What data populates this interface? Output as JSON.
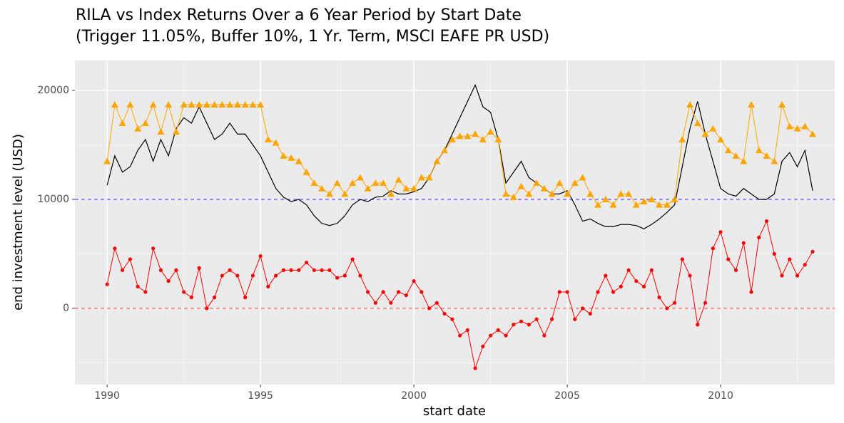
{
  "chart_data": {
    "type": "line",
    "title": "RILA vs Index Returns Over a 6 Year Period by Start Date",
    "subtitle": "(Trigger 11.05%, Buffer 10%, 1 Yr. Term, MSCI EAFE PR USD)",
    "x_label": "start date",
    "y_label": "end investment level (USD)",
    "xlim": [
      1988.95,
      2013.72
    ],
    "ylim": [
      -7000,
      22750
    ],
    "xticks": [
      1990,
      1995,
      2000,
      2005,
      2010
    ],
    "yticks": [
      0,
      10000,
      20000
    ],
    "x_minor_ticks": [
      1992.5,
      1997.5,
      2002.5,
      2007.5,
      2012.5
    ],
    "y_minor_ticks": [
      -5000,
      5000,
      15000
    ],
    "grid": true,
    "hlines": [
      {
        "value": 10000,
        "color": "#6b6bff"
      },
      {
        "value": 0,
        "color": "#f08080"
      }
    ],
    "x": [
      1990,
      1990.25,
      1990.5,
      1990.75,
      1991,
      1991.25,
      1991.5,
      1991.75,
      1992,
      1992.25,
      1992.5,
      1992.75,
      1993,
      1993.25,
      1993.5,
      1993.75,
      1994,
      1994.25,
      1994.5,
      1994.75,
      1995,
      1995.25,
      1995.5,
      1995.75,
      1996,
      1996.25,
      1996.5,
      1996.75,
      1997,
      1997.25,
      1997.5,
      1997.75,
      1998,
      1998.25,
      1998.5,
      1998.75,
      1999,
      1999.25,
      1999.5,
      1999.75,
      2000,
      2000.25,
      2000.5,
      2000.75,
      2001,
      2001.25,
      2001.5,
      2001.75,
      2002,
      2002.25,
      2002.5,
      2002.75,
      2003,
      2003.25,
      2003.5,
      2003.75,
      2004,
      2004.25,
      2004.5,
      2004.75,
      2005,
      2005.25,
      2005.5,
      2005.75,
      2006,
      2006.25,
      2006.5,
      2006.75,
      2007,
      2007.25,
      2007.5,
      2007.75,
      2008,
      2008.25,
      2008.5,
      2008.75,
      2009,
      2009.25,
      2009.5,
      2009.75,
      2010,
      2010.25,
      2010.5,
      2010.75,
      2011,
      2011.25,
      2011.5,
      2011.75,
      2012,
      2012.25,
      2012.5,
      2012.75,
      2013
    ],
    "series": [
      {
        "color": "#000000",
        "marker": "none",
        "values": [
          11300,
          14000,
          12500,
          13000,
          14500,
          15500,
          13500,
          15500,
          14000,
          16500,
          17500,
          17000,
          18500,
          17000,
          15500,
          16000,
          17000,
          16000,
          16000,
          15000,
          14000,
          12500,
          11000,
          10200,
          9800,
          10000,
          9500,
          8500,
          7800,
          7600,
          7800,
          8500,
          9500,
          10000,
          9800,
          10200,
          10300,
          10800,
          10500,
          10500,
          10700,
          11000,
          12000,
          13500,
          14500,
          16000,
          17500,
          19000,
          20500,
          18500,
          18000,
          15500,
          11500,
          12500,
          13500,
          12000,
          11500,
          11000,
          10500,
          10500,
          10800,
          9500,
          8000,
          8200,
          7800,
          7500,
          7500,
          7700,
          7700,
          7600,
          7300,
          7700,
          8200,
          8800,
          9500,
          13000,
          16500,
          19000,
          16000,
          13500,
          11000,
          10500,
          10300,
          11000,
          10500,
          10000,
          10000,
          10500,
          13500,
          14300,
          13000,
          14500,
          10800
        ]
      },
      {
        "color": "#ffa500",
        "marker": "triangle",
        "values": [
          13500,
          18700,
          17000,
          18700,
          16500,
          17000,
          18700,
          16200,
          18700,
          16200,
          18700,
          18700,
          18700,
          18700,
          18700,
          18700,
          18700,
          18700,
          18700,
          18700,
          18700,
          15500,
          15200,
          14000,
          13800,
          13500,
          12500,
          11500,
          11000,
          10500,
          11500,
          10500,
          11500,
          12000,
          11000,
          11500,
          11500,
          10500,
          11800,
          11000,
          11000,
          12000,
          12000,
          13500,
          14500,
          15500,
          15800,
          15800,
          16000,
          15500,
          16200,
          15500,
          10500,
          10200,
          11200,
          10500,
          11500,
          11000,
          10500,
          11500,
          10500,
          11500,
          12000,
          10500,
          9500,
          10000,
          9500,
          10500,
          10500,
          9500,
          9800,
          10000,
          9500,
          9500,
          10000,
          15500,
          18700,
          17000,
          16000,
          16500,
          15500,
          14500,
          14000,
          13500,
          18700,
          14500,
          14000,
          13500,
          18700,
          16700,
          16500,
          16700,
          16000
        ]
      },
      {
        "color": "#ff0000",
        "marker": "circle",
        "values": [
          2200,
          5500,
          3500,
          4500,
          2000,
          1500,
          5500,
          3500,
          2500,
          3500,
          1500,
          1000,
          3700,
          0,
          1000,
          3000,
          3500,
          3000,
          1000,
          3000,
          4800,
          2000,
          3000,
          3500,
          3500,
          3500,
          4200,
          3500,
          3500,
          3500,
          2800,
          3000,
          4500,
          3000,
          1500,
          500,
          1500,
          500,
          1500,
          1200,
          2500,
          1500,
          0,
          500,
          -500,
          -1000,
          -2500,
          -2000,
          -5500,
          -3500,
          -2500,
          -2000,
          -2500,
          -1500,
          -1200,
          -1500,
          -1000,
          -2500,
          -1000,
          1500,
          1500,
          -1000,
          0,
          -500,
          1500,
          3000,
          1500,
          2000,
          3500,
          2500,
          2000,
          3500,
          1000,
          0,
          500,
          4500,
          3000,
          -1500,
          500,
          5500,
          7000,
          4500,
          3500,
          6000,
          1500,
          6500,
          8000,
          5000,
          3000,
          4500,
          3000,
          4000,
          5200
        ]
      }
    ]
  }
}
